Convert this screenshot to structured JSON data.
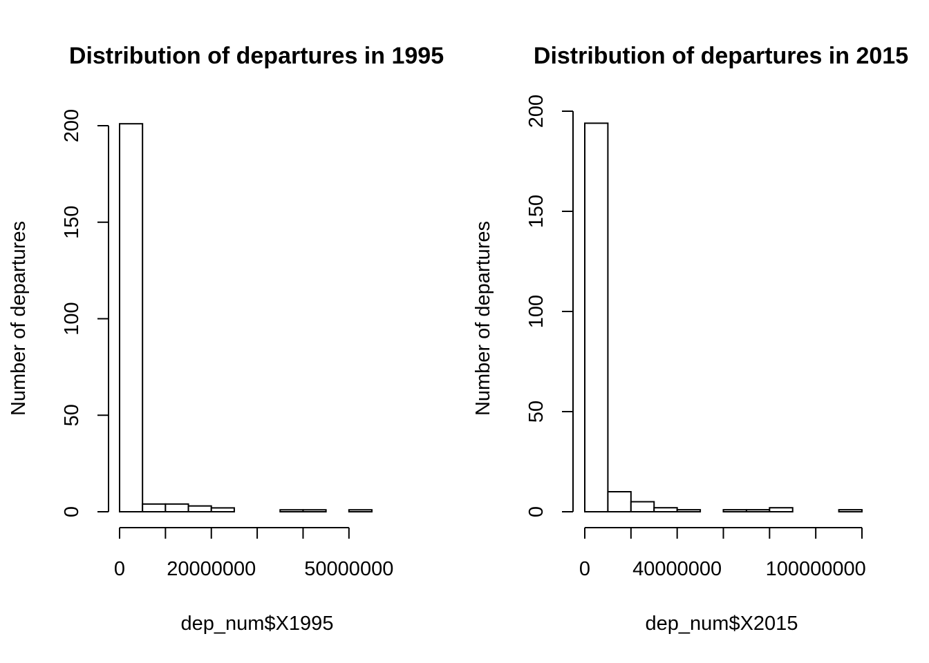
{
  "chart_data": [
    {
      "type": "bar",
      "title": "Distribution of departures in 1995",
      "xlabel": "dep_num$X1995",
      "ylabel": "Number of departures",
      "bin_edges": [
        0,
        5000000,
        10000000,
        15000000,
        20000000,
        25000000,
        30000000,
        35000000,
        40000000,
        45000000,
        50000000,
        55000000
      ],
      "values": [
        201,
        4,
        4,
        3,
        2,
        0,
        0,
        1,
        1,
        0,
        1
      ],
      "xlim": [
        0,
        55000000
      ],
      "ylim": [
        0,
        200
      ],
      "xticks": [
        0,
        10000000,
        20000000,
        30000000,
        40000000,
        50000000
      ],
      "xtick_labels": [
        "0",
        "",
        "20000000",
        "",
        "",
        "50000000"
      ],
      "yticks": [
        0,
        50,
        100,
        150,
        200
      ],
      "ytick_labels": [
        "0",
        "50",
        "100",
        "150",
        "200"
      ],
      "grid": false
    },
    {
      "type": "bar",
      "title": "Distribution of departures in 2015",
      "xlabel": "dep_num$X2015",
      "ylabel": "Number of departures",
      "bin_edges": [
        0,
        10000000,
        20000000,
        30000000,
        40000000,
        50000000,
        60000000,
        70000000,
        80000000,
        90000000,
        100000000,
        110000000,
        120000000
      ],
      "values": [
        194,
        10,
        5,
        2,
        1,
        0,
        1,
        1,
        2,
        0,
        0,
        1
      ],
      "xlim": [
        0,
        120000000
      ],
      "ylim": [
        0,
        200
      ],
      "xticks": [
        0,
        20000000,
        40000000,
        60000000,
        80000000,
        100000000,
        120000000
      ],
      "xtick_labels": [
        "0",
        "",
        "40000000",
        "",
        "",
        "100000000",
        ""
      ],
      "yticks": [
        0,
        50,
        100,
        150,
        200
      ],
      "ytick_labels": [
        "0",
        "50",
        "100",
        "150",
        "200"
      ],
      "grid": false
    }
  ]
}
